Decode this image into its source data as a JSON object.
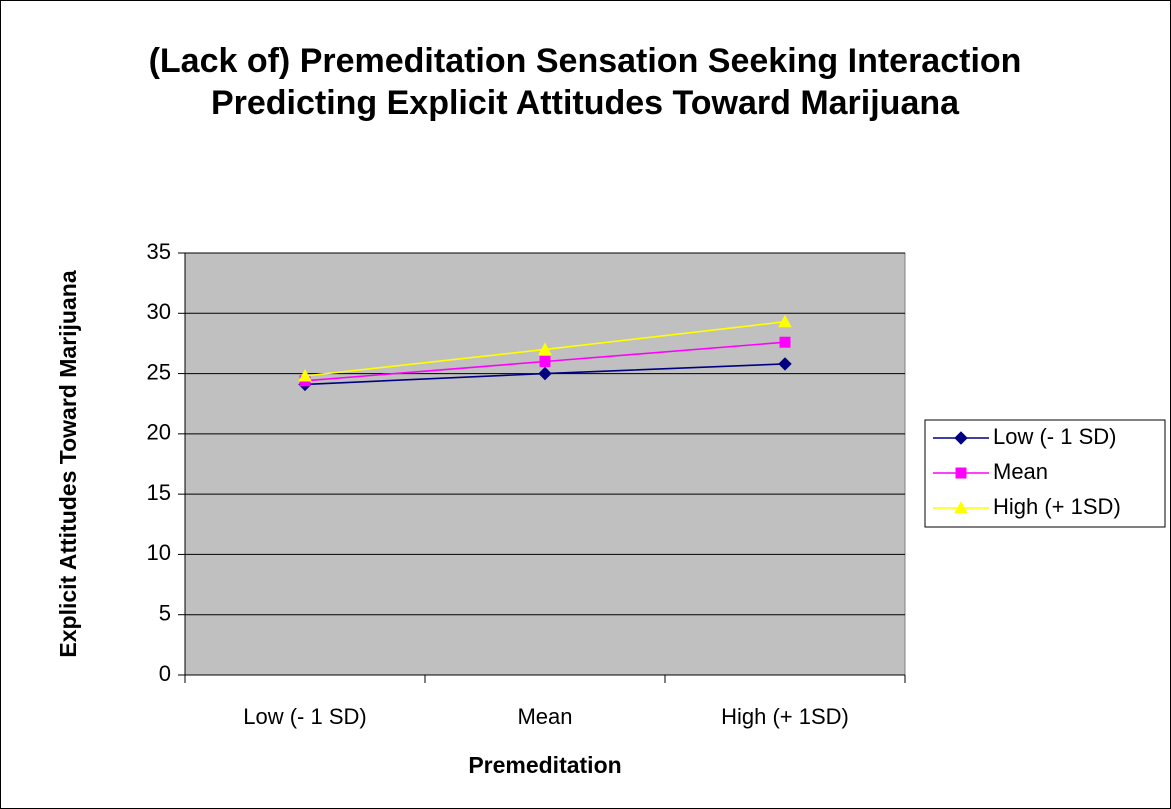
{
  "chart_data": {
    "type": "line",
    "title": "(Lack of) Premeditation Sensation Seeking Interaction Predicting Explicit Attitudes Toward Marijuana",
    "x_label": "Premeditation",
    "y_label": "Explicit Attitudes Toward Marijuana",
    "categories": [
      "Low (- 1 SD)",
      "Mean",
      "High (+ 1SD)"
    ],
    "series": [
      {
        "name": "Low (- 1 SD)",
        "color": "#000080",
        "marker": "diamond",
        "values": [
          24.1,
          25.0,
          25.8
        ]
      },
      {
        "name": "Mean",
        "color": "#FF00FF",
        "marker": "square",
        "values": [
          24.4,
          26.0,
          27.6
        ]
      },
      {
        "name": "High (+ 1SD)",
        "color": "#FFFF00",
        "marker": "triangle",
        "values": [
          24.8,
          27.0,
          29.3
        ]
      }
    ],
    "ylim": [
      0,
      35
    ],
    "yticks": [
      0,
      5,
      10,
      15,
      20,
      25,
      30,
      35
    ],
    "grid": true,
    "legend": "right",
    "plot_background": "#C0C0C0"
  }
}
